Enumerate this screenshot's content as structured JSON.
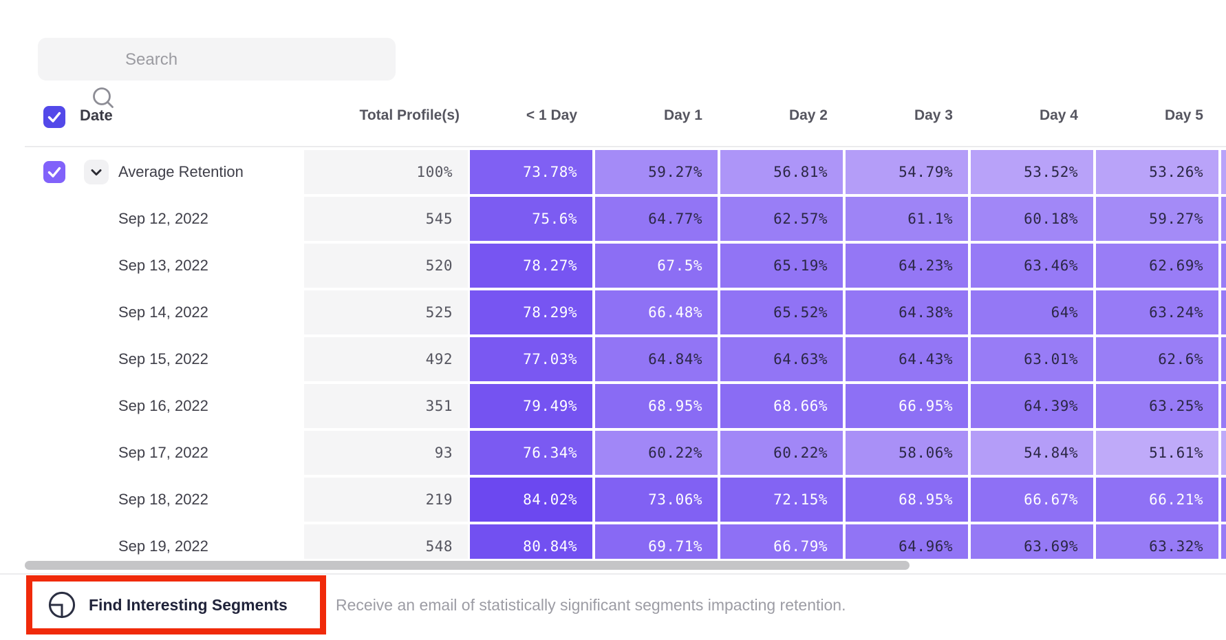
{
  "search": {
    "placeholder": "Search"
  },
  "table": {
    "select_all_checked": true,
    "date_column_header": "Date",
    "total_column_header": "Total Profile(s)",
    "day_column_headers": [
      "< 1 Day",
      "Day 1",
      "Day 2",
      "Day 3",
      "Day 4",
      "Day 5"
    ],
    "rows": [
      {
        "label": "Average Retention",
        "is_average": true,
        "checked": true,
        "expandable": true,
        "total": "100%",
        "day_values": [
          73.78,
          59.27,
          56.81,
          54.79,
          53.52,
          53.26
        ]
      },
      {
        "label": "Sep 12, 2022",
        "total": "545",
        "day_values": [
          75.6,
          64.77,
          62.57,
          61.1,
          60.18,
          59.27
        ]
      },
      {
        "label": "Sep 13, 2022",
        "total": "520",
        "day_values": [
          78.27,
          67.5,
          65.19,
          64.23,
          63.46,
          62.69
        ]
      },
      {
        "label": "Sep 14, 2022",
        "total": "525",
        "day_values": [
          78.29,
          66.48,
          65.52,
          64.38,
          64,
          63.24
        ]
      },
      {
        "label": "Sep 15, 2022",
        "total": "492",
        "day_values": [
          77.03,
          64.84,
          64.63,
          64.43,
          63.01,
          62.6
        ]
      },
      {
        "label": "Sep 16, 2022",
        "total": "351",
        "day_values": [
          79.49,
          68.95,
          68.66,
          66.95,
          64.39,
          63.25
        ]
      },
      {
        "label": "Sep 17, 2022",
        "total": "93",
        "day_values": [
          76.34,
          60.22,
          60.22,
          58.06,
          54.84,
          51.61
        ]
      },
      {
        "label": "Sep 18, 2022",
        "total": "219",
        "day_values": [
          84.02,
          73.06,
          72.15,
          68.95,
          66.67,
          66.21
        ]
      },
      {
        "label": "Sep 19, 2022",
        "total": "548",
        "day_values": [
          80.84,
          69.71,
          66.79,
          64.96,
          63.69,
          63.32
        ]
      }
    ]
  },
  "heatmap": {
    "color_stops": [
      [
        50,
        "#c4b0fa"
      ],
      [
        65,
        "#9174f5"
      ],
      [
        85,
        "#6a46f0"
      ]
    ],
    "white_text_threshold": 66,
    "white_text_color": "#ffffff",
    "dark_text_color": "#2b2745"
  },
  "colors": {
    "header_checkbox": "#5349e9",
    "row_checkbox": "#8162fa",
    "total_cell_bg": "#f5f5f6",
    "highlight_red": "#f02a0a"
  },
  "footer": {
    "button_label": "Find Interesting Segments",
    "description": "Receive an email of statistically significant segments impacting retention."
  }
}
